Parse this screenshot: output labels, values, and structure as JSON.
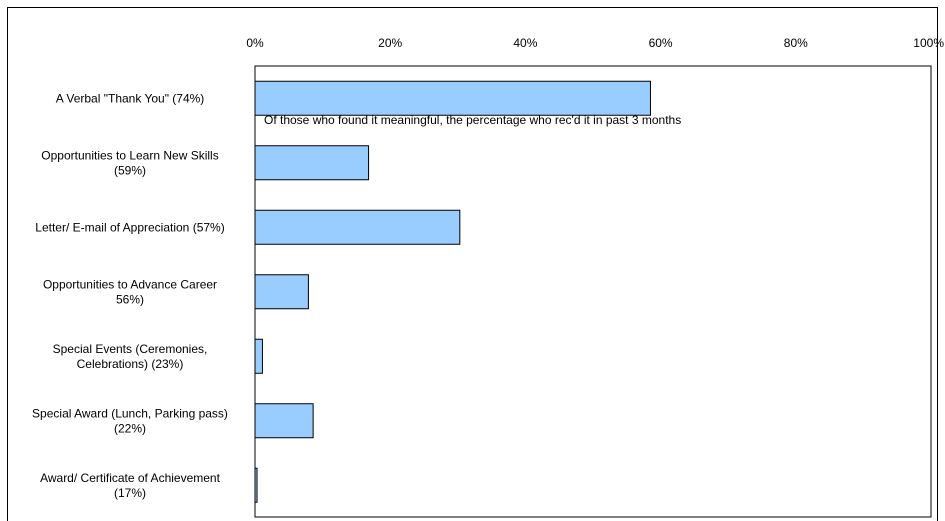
{
  "chart_data": {
    "type": "bar",
    "orientation": "horizontal",
    "categories": [
      "A Verbal \"Thank You\" (74%)",
      "Opportunities to Learn New Skills (59%)",
      "Letter/ E-mail of Appreciation (57%)",
      "Opportunities to Advance Career 56%)",
      "Special Events (Ceremonies, Celebrations) (23%)",
      "Special Award (Lunch, Parking pass) (22%)",
      "Award/ Certificate of Achievement (17%)"
    ],
    "category_lines": [
      [
        "A Verbal \"Thank You\" (74%)"
      ],
      [
        "Opportunities to Learn New Skills",
        "(59%)"
      ],
      [
        "Letter/ E-mail of Appreciation (57%)"
      ],
      [
        "Opportunities to Advance Career",
        "56%)"
      ],
      [
        "Special Events (Ceremonies,",
        "Celebrations) (23%)"
      ],
      [
        "Special Award (Lunch, Parking pass)",
        "(22%)"
      ],
      [
        "Award/ Certificate of Achievement",
        "(17%)"
      ]
    ],
    "values": [
      58.5,
      16.8,
      30.3,
      7.9,
      1.1,
      8.6,
      0.3
    ],
    "xlim": [
      0,
      100
    ],
    "xticks": [
      0,
      20,
      40,
      60,
      80,
      100
    ],
    "xtick_labels": [
      "0%",
      "20%",
      "40%",
      "60%",
      "80%",
      "100%"
    ],
    "annotation": "Of those who found it meaningful, the percentage who rec'd it in past 3 months",
    "bar_color": "#99ccff",
    "bar_edge_color": "#000000",
    "grid": false,
    "legend": "none"
  }
}
